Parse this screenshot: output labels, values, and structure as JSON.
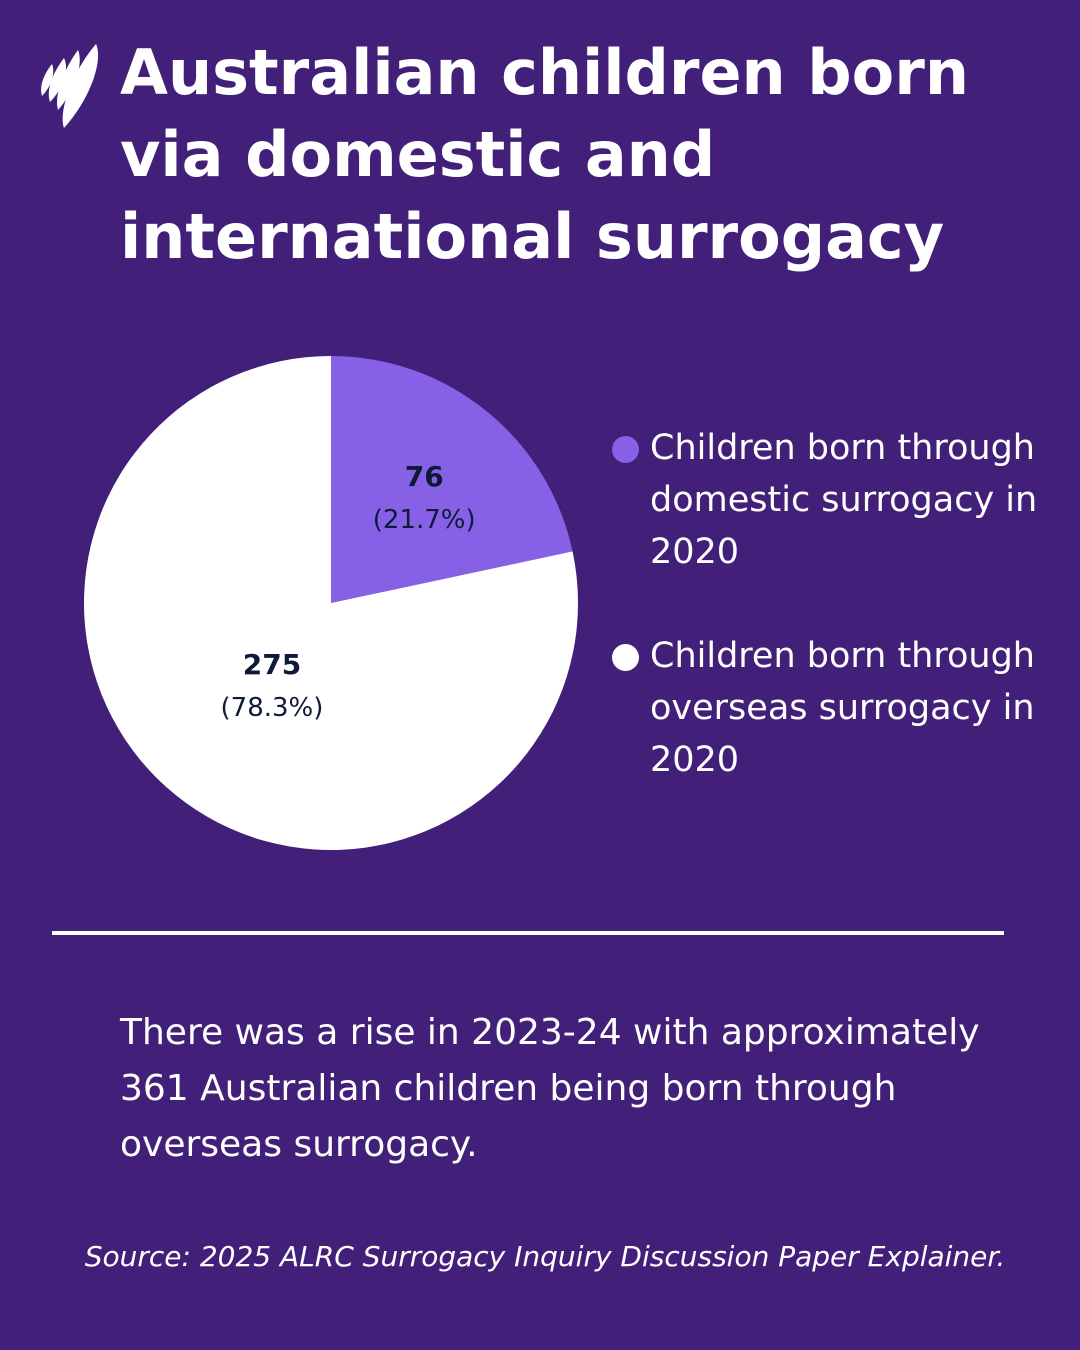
{
  "logo_text": "SBS",
  "title": "Australian children born via domestic and international surrogacy",
  "chart_data": {
    "type": "pie",
    "title": "",
    "start_angle": "12 o'clock, clockwise",
    "slices": [
      {
        "label": "Children born through domestic surrogacy in 2020",
        "value": 76,
        "percent_label": "(21.7%)",
        "color": "#8661e6"
      },
      {
        "label": "Children born through overseas surrogacy in 2020",
        "value": 275,
        "percent_label": "(78.3%)",
        "color": "#ffffff"
      }
    ],
    "label_color": "#0f1a3a",
    "legend_position": "right"
  },
  "note": "There was a rise in 2023-24 with approximately 361 Australian children being born through overseas surrogacy.",
  "source": "Source: 2025 ALRC Surrogacy Inquiry Discussion Paper Explainer.",
  "colors": {
    "background": "#42207a",
    "text": "#ffffff"
  }
}
